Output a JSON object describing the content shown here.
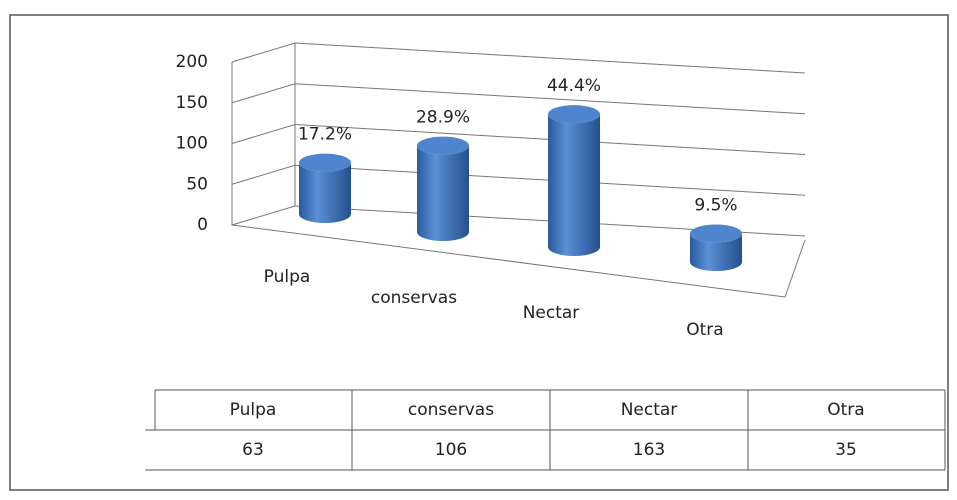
{
  "chart_data": {
    "type": "bar3d",
    "categories": [
      "Pulpa",
      "conservas",
      "Nectar",
      "Otra"
    ],
    "values": [
      63,
      106,
      163,
      35
    ],
    "percent_labels": [
      "17.2%",
      "28.9%",
      "44.4%",
      "9.5%"
    ],
    "color": "#3f74bf",
    "ylim": [
      0,
      200
    ],
    "yticks": [
      0,
      50,
      100,
      150,
      200
    ],
    "grid": true
  }
}
